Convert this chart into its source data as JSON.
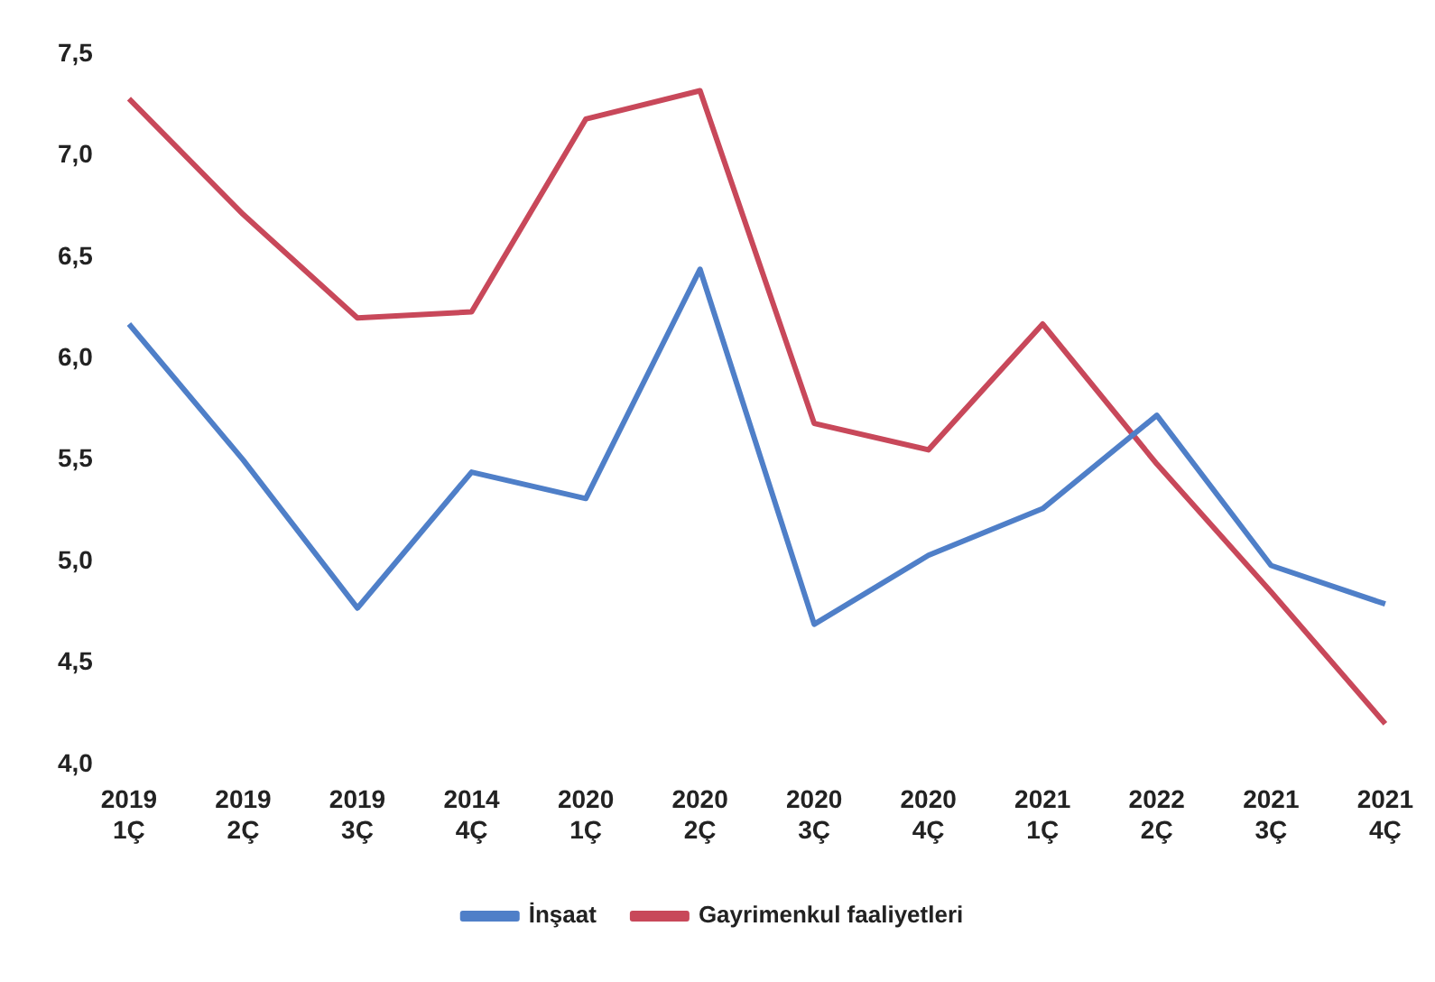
{
  "chart_data": {
    "type": "line",
    "categories": [
      "2019 1Ç",
      "2019 2Ç",
      "2019 3Ç",
      "2014 4Ç",
      "2020 1Ç",
      "2020 2Ç",
      "2020 3Ç",
      "2020 4Ç",
      "2021 1Ç",
      "2022 2Ç",
      "2021 3Ç",
      "2021 4Ç"
    ],
    "series": [
      {
        "name": "İnşaat",
        "color": "#4f7fc8",
        "values": [
          6.17,
          5.5,
          4.77,
          5.44,
          5.31,
          6.44,
          4.69,
          5.03,
          5.26,
          5.72,
          4.98,
          4.79
        ]
      },
      {
        "name": "Gayrimenkul faaliyetleri",
        "color": "#c8485a",
        "values": [
          7.28,
          6.71,
          6.2,
          6.23,
          7.18,
          7.32,
          5.68,
          5.55,
          6.17,
          5.48,
          4.85,
          4.2
        ]
      }
    ],
    "ylim": [
      4,
      7.5
    ],
    "yticks": [
      {
        "value": 4,
        "label": "4,0"
      },
      {
        "value": 4.5,
        "label": "4,5"
      },
      {
        "value": 5,
        "label": "5,0"
      },
      {
        "value": 5.5,
        "label": "5,5"
      },
      {
        "value": 6,
        "label": "6,0"
      },
      {
        "value": 6.5,
        "label": "6,5"
      },
      {
        "value": 7,
        "label": "7,0"
      },
      {
        "value": 7.5,
        "label": "7,5"
      }
    ],
    "grid": false,
    "legend": "bottom",
    "marker": "none",
    "line_style": "solid"
  }
}
